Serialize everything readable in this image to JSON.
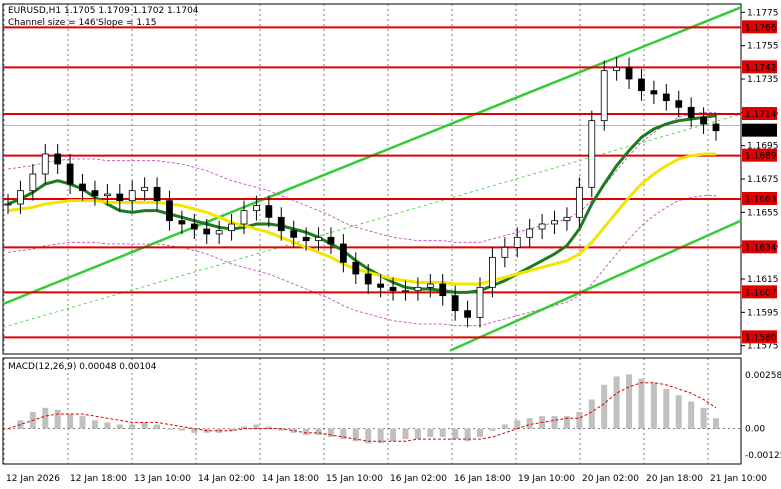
{
  "header": {
    "symbol_line": "EURUSD,H1  1.1705 1.1709 1.1702 1.1704",
    "channel_line": "Channel size = 146'Slope = 1.15"
  },
  "macd": {
    "title": "MACD(12,26,9) 0.00048 0.00104"
  },
  "colors": {
    "candle": "#000000",
    "level_line": "#e00000",
    "level_label_bg": "#e00000",
    "ma_fast": "#1e7a1e",
    "ma_slow": "#f2e600",
    "channel": "#33cc33",
    "bands": "#c040c0",
    "macd_hist": "#c0c0c0",
    "macd_signal": "#e00000",
    "grid": "#000000"
  },
  "chart_data": {
    "type": "line",
    "ylim": [
      1.157,
      1.178
    ],
    "price_ticks": [
      "1.1775",
      "1.1755",
      "1.1735",
      "1.1715",
      "1.1695",
      "1.1675",
      "1.1655",
      "1.1635",
      "1.1615",
      "1.1595",
      "1.1575"
    ],
    "x_ticks": [
      "12 Jan 2026",
      "12 Jan 18:00",
      "13 Jan 10:00",
      "14 Jan 02:00",
      "14 Jan 18:00",
      "15 Jan 10:00",
      "16 Jan 02:00",
      "16 Jan 18:00",
      "19 Jan 10:00",
      "20 Jan 02:00",
      "20 Jan 18:00",
      "21 Jan 10:00"
    ],
    "levels": [
      {
        "label": "1.1766",
        "value": 1.1766
      },
      {
        "label": "1.1742",
        "value": 1.1742
      },
      {
        "label": "1.1714",
        "value": 1.1714
      },
      {
        "label": "1.1689",
        "value": 1.1689
      },
      {
        "label": "1.1663",
        "value": 1.1663
      },
      {
        "label": "1.1634",
        "value": 1.1634
      },
      {
        "label": "1.1607",
        "value": 1.1607
      },
      {
        "label": "1.1580",
        "value": 1.158
      }
    ],
    "current_price": {
      "label": "1.1704",
      "value": 1.1704
    },
    "closes": [
      1.166,
      1.1668,
      1.1678,
      1.169,
      1.1684,
      1.1672,
      1.1668,
      1.1665,
      1.1666,
      1.1662,
      1.1668,
      1.167,
      1.1662,
      1.165,
      1.1648,
      1.1645,
      1.1642,
      1.1644,
      1.1648,
      1.1656,
      1.1659,
      1.1652,
      1.1644,
      1.164,
      1.1638,
      1.164,
      1.1636,
      1.1625,
      1.1618,
      1.1612,
      1.161,
      1.1608,
      1.1608,
      1.161,
      1.1612,
      1.1605,
      1.1596,
      1.1592,
      1.161,
      1.1628,
      1.1634,
      1.164,
      1.1645,
      1.1648,
      1.165,
      1.1652,
      1.167,
      1.171,
      1.174,
      1.1742,
      1.1735,
      1.1728,
      1.1726,
      1.1722,
      1.1718,
      1.1712,
      1.1708,
      1.1704
    ],
    "series": [
      {
        "name": "MA fast",
        "values": [
          1.166,
          1.1663,
          1.1667,
          1.1672,
          1.1674,
          1.1672,
          1.1669,
          1.1664,
          1.166,
          1.1656,
          1.1655,
          1.1656,
          1.1656,
          1.1654,
          1.1652,
          1.165,
          1.1648,
          1.1646,
          1.1645,
          1.1646,
          1.1648,
          1.1648,
          1.1647,
          1.1645,
          1.1643,
          1.164,
          1.1636,
          1.1632,
          1.1626,
          1.1621,
          1.1617,
          1.1613,
          1.161,
          1.1609,
          1.1609,
          1.1608,
          1.1607,
          1.1607,
          1.1608,
          1.1611,
          1.1614,
          1.1618,
          1.1622,
          1.1626,
          1.163,
          1.1635,
          1.1645,
          1.166,
          1.1672,
          1.1683,
          1.1692,
          1.17,
          1.1705,
          1.1708,
          1.171,
          1.1711,
          1.1712,
          1.1713
        ]
      },
      {
        "name": "MA slow",
        "values": [
          1.1656,
          1.1657,
          1.1658,
          1.166,
          1.1661,
          1.1662,
          1.1662,
          1.1662,
          1.1661,
          1.1661,
          1.1661,
          1.1661,
          1.1661,
          1.166,
          1.1659,
          1.1657,
          1.1655,
          1.1652,
          1.1649,
          1.1647,
          1.1645,
          1.1643,
          1.164,
          1.1637,
          1.1634,
          1.1631,
          1.1628,
          1.1624,
          1.1621,
          1.1619,
          1.1617,
          1.1615,
          1.1614,
          1.1613,
          1.1613,
          1.1613,
          1.1612,
          1.1612,
          1.1612,
          1.1614,
          1.1616,
          1.1618,
          1.162,
          1.1622,
          1.1624,
          1.1626,
          1.163,
          1.1637,
          1.1646,
          1.1655,
          1.1664,
          1.1672,
          1.1678,
          1.1683,
          1.1687,
          1.1689,
          1.169,
          1.169
        ]
      }
    ],
    "macd_ylim": [
      -0.0015,
      0.003
    ],
    "macd_ticks": [
      "0.00258",
      "0.00",
      "-0.00125"
    ],
    "macd_hist": [
      0.0,
      0.0004,
      0.0008,
      0.001,
      0.0009,
      0.0007,
      0.0006,
      0.0004,
      0.0003,
      0.0002,
      0.0002,
      0.0003,
      0.0002,
      0.0,
      -0.0001,
      -0.0002,
      -0.0002,
      -0.0002,
      -0.0001,
      0.0001,
      0.0002,
      0.0001,
      -0.0001,
      -0.0002,
      -0.0003,
      -0.0003,
      -0.0004,
      -0.0005,
      -0.0006,
      -0.0007,
      -0.0007,
      -0.0006,
      -0.0005,
      -0.0005,
      -0.0004,
      -0.0004,
      -0.0005,
      -0.0006,
      -0.0004,
      -0.0001,
      0.0002,
      0.0004,
      0.0005,
      0.0006,
      0.0006,
      0.0006,
      0.0008,
      0.0014,
      0.0021,
      0.0025,
      0.0026,
      0.0024,
      0.0022,
      0.0019,
      0.0016,
      0.0013,
      0.001,
      0.0005
    ],
    "macd_signal": [
      0.0,
      0.0002,
      0.0004,
      0.0006,
      0.0007,
      0.0007,
      0.0007,
      0.0006,
      0.0005,
      0.0004,
      0.0003,
      0.0003,
      0.0003,
      0.0002,
      0.0001,
      0.0,
      -0.0001,
      -0.0001,
      -0.0001,
      0.0,
      0.0,
      0.0,
      0.0,
      -0.0001,
      -0.0002,
      -0.0002,
      -0.0003,
      -0.0004,
      -0.0005,
      -0.0006,
      -0.0006,
      -0.0006,
      -0.0006,
      -0.0005,
      -0.0005,
      -0.0005,
      -0.0005,
      -0.0005,
      -0.0005,
      -0.0004,
      -0.0002,
      0.0,
      0.0002,
      0.0003,
      0.0004,
      0.0005,
      0.0005,
      0.0008,
      0.0012,
      0.0017,
      0.002,
      0.0022,
      0.0022,
      0.0021,
      0.0019,
      0.0017,
      0.0014,
      0.001
    ]
  }
}
